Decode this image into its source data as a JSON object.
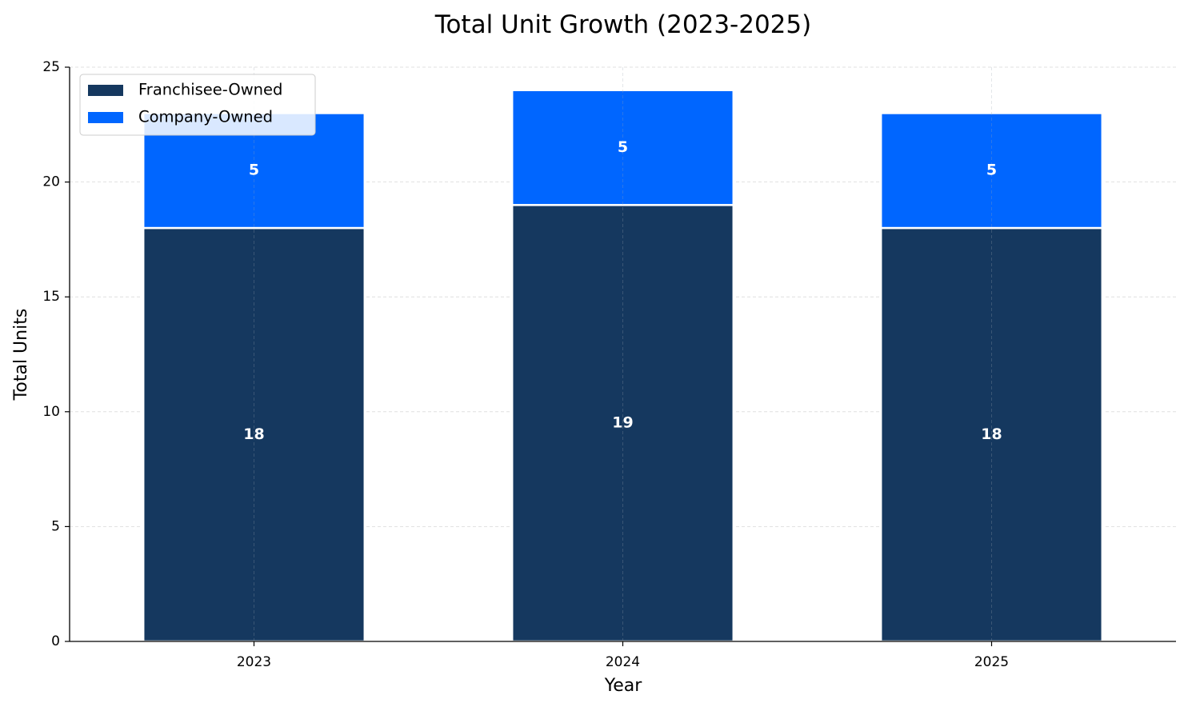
{
  "chart_data": {
    "type": "bar",
    "stacked": true,
    "title": "Total Unit Growth (2023-2025)",
    "xlabel": "Year",
    "ylabel": "Total Units",
    "categories": [
      "2023",
      "2024",
      "2025"
    ],
    "series": [
      {
        "name": "Franchisee-Owned",
        "values": [
          18,
          19,
          18
        ],
        "color": "#15385f"
      },
      {
        "name": "Company-Owned",
        "values": [
          5,
          5,
          5
        ],
        "color": "#0066ff"
      }
    ],
    "ylim": [
      0,
      25
    ],
    "yticks": [
      0,
      5,
      10,
      15,
      20,
      25
    ],
    "grid": true,
    "legend_position": "top-left"
  }
}
